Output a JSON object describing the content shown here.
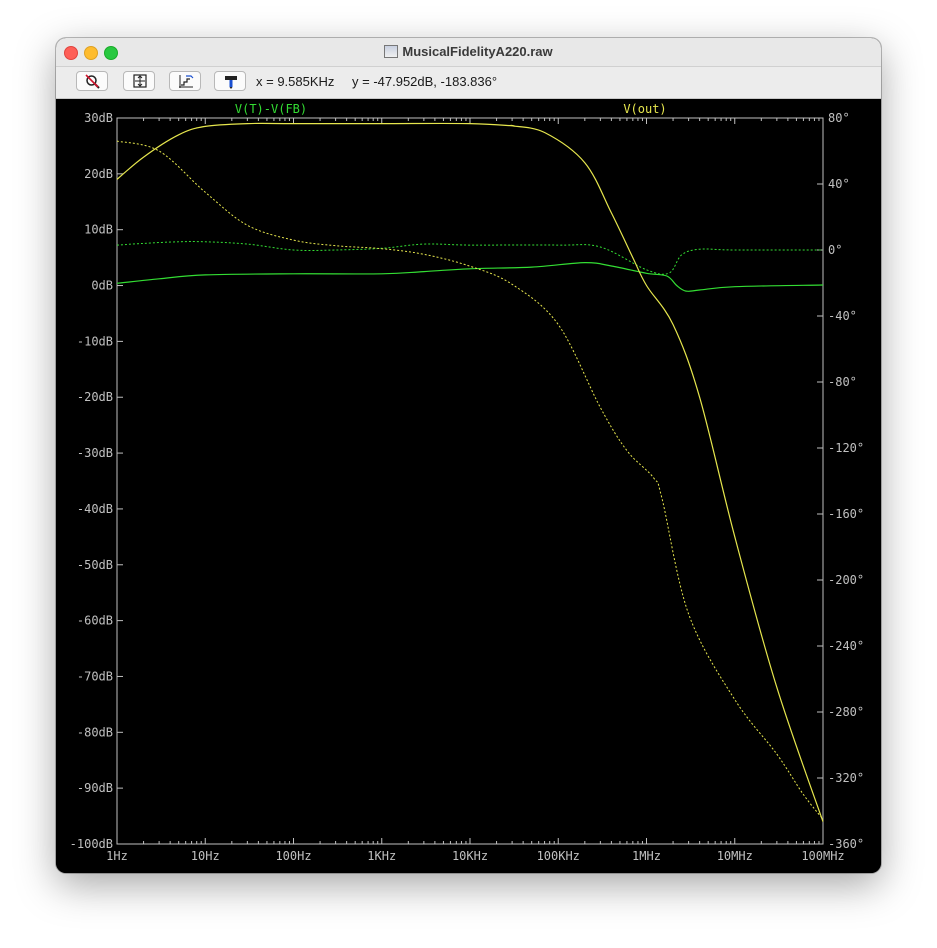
{
  "window": {
    "title": "MusicalFidelityA220.raw",
    "title_icon": "waveform-file-icon"
  },
  "toolbar": {
    "buttons": [
      {
        "name": "zoom-cancel-button",
        "icon": "magnifier-cancel-icon"
      },
      {
        "name": "autorange-button",
        "icon": "autorange-icon"
      },
      {
        "name": "cursor-step-button",
        "icon": "step-cursor-icon"
      },
      {
        "name": "probe-button",
        "icon": "probe-icon"
      }
    ],
    "cursor_x": "x = 9.585KHz",
    "cursor_y": "y = -47.952dB, -183.836°"
  },
  "chart_data": {
    "type": "line",
    "xscale": "log",
    "xlim": [
      1,
      100000000
    ],
    "x_ticks": [
      "1Hz",
      "10Hz",
      "100Hz",
      "1KHz",
      "10KHz",
      "100KHz",
      "1MHz",
      "10MHz",
      "100MHz"
    ],
    "y_left": {
      "lim": [
        -100,
        30
      ],
      "ticks": [
        "30dB",
        "20dB",
        "10dB",
        "0dB",
        "-10dB",
        "-20dB",
        "-30dB",
        "-40dB",
        "-50dB",
        "-60dB",
        "-70dB",
        "-80dB",
        "-90dB",
        "-100dB"
      ]
    },
    "y_right": {
      "lim": [
        -360,
        80
      ],
      "ticks": [
        "80°",
        "40°",
        "0°",
        "-40°",
        "-80°",
        "-120°",
        "-160°",
        "-200°",
        "-240°",
        "-280°",
        "-320°",
        "-360°"
      ]
    },
    "grid": false,
    "colors": {
      "background": "#000000",
      "axes": "#c0c0c0",
      "green": "#33dd33",
      "yellow": "#e6e64d"
    },
    "series": [
      {
        "name": "V(T)-V(FB)",
        "color": "#33dd33",
        "magnitude_db": [
          [
            1,
            0.4
          ],
          [
            3,
            1.2
          ],
          [
            10,
            1.9
          ],
          [
            100,
            2.1
          ],
          [
            1000,
            2.1
          ],
          [
            3000,
            2.5
          ],
          [
            10000,
            3
          ],
          [
            50000,
            3.3
          ],
          [
            200000,
            4.1
          ],
          [
            400000,
            3.5
          ],
          [
            1000000,
            2.2
          ],
          [
            1700000,
            1.7
          ],
          [
            2200000,
            0
          ],
          [
            2800000,
            -1
          ],
          [
            4000000,
            -0.8
          ],
          [
            10000000,
            -0.2
          ],
          [
            100000000,
            0.1
          ]
        ],
        "phase_deg": [
          [
            1,
            3
          ],
          [
            2,
            4
          ],
          [
            5,
            5
          ],
          [
            10,
            5
          ],
          [
            30,
            3.6
          ],
          [
            100,
            0
          ],
          [
            300,
            0
          ],
          [
            1000,
            1
          ],
          [
            3000,
            3.6
          ],
          [
            10000,
            3
          ],
          [
            100000,
            3
          ],
          [
            300000,
            1.8
          ],
          [
            1000000,
            -12
          ],
          [
            1800000,
            -14
          ],
          [
            2500000,
            -3
          ],
          [
            4000000,
            0.5
          ],
          [
            10000000,
            0
          ],
          [
            100000000,
            0
          ]
        ]
      },
      {
        "name": "V(out)",
        "color": "#e6e64d",
        "magnitude_db": [
          [
            1,
            19
          ],
          [
            2,
            23
          ],
          [
            5,
            27
          ],
          [
            10,
            28.5
          ],
          [
            30,
            29
          ],
          [
            100,
            29
          ],
          [
            1000,
            29
          ],
          [
            10000,
            29
          ],
          [
            30000,
            28.6
          ],
          [
            70000,
            27.4
          ],
          [
            200000,
            22
          ],
          [
            400000,
            13
          ],
          [
            700000,
            5
          ],
          [
            1000000,
            0
          ],
          [
            2000000,
            -7
          ],
          [
            4000000,
            -20
          ],
          [
            10000000,
            -45
          ],
          [
            30000,
            28.6
          ],
          [
            30000000,
            -72
          ],
          [
            100000000,
            -96
          ]
        ],
        "phase_deg": [
          [
            1,
            66
          ],
          [
            3,
            60
          ],
          [
            10,
            35
          ],
          [
            30,
            15
          ],
          [
            100,
            6
          ],
          [
            300,
            2.6
          ],
          [
            1000,
            0.8
          ],
          [
            3000,
            -2.6
          ],
          [
            10000,
            -9.8
          ],
          [
            30000,
            -20.8
          ],
          [
            100000,
            -45.2
          ],
          [
            300000,
            -95.5
          ],
          [
            600000,
            -121.6
          ],
          [
            1200000,
            -138
          ],
          [
            1500000,
            -150.6
          ],
          [
            3000000,
            -220.6
          ],
          [
            10000000,
            -272.5
          ],
          [
            30000000,
            -305.6
          ],
          [
            60000000,
            -330
          ],
          [
            100000000,
            -345
          ]
        ]
      }
    ],
    "cursor_readout": {
      "x": "9.585KHz",
      "y": "-47.952dB, -183.836°"
    }
  }
}
